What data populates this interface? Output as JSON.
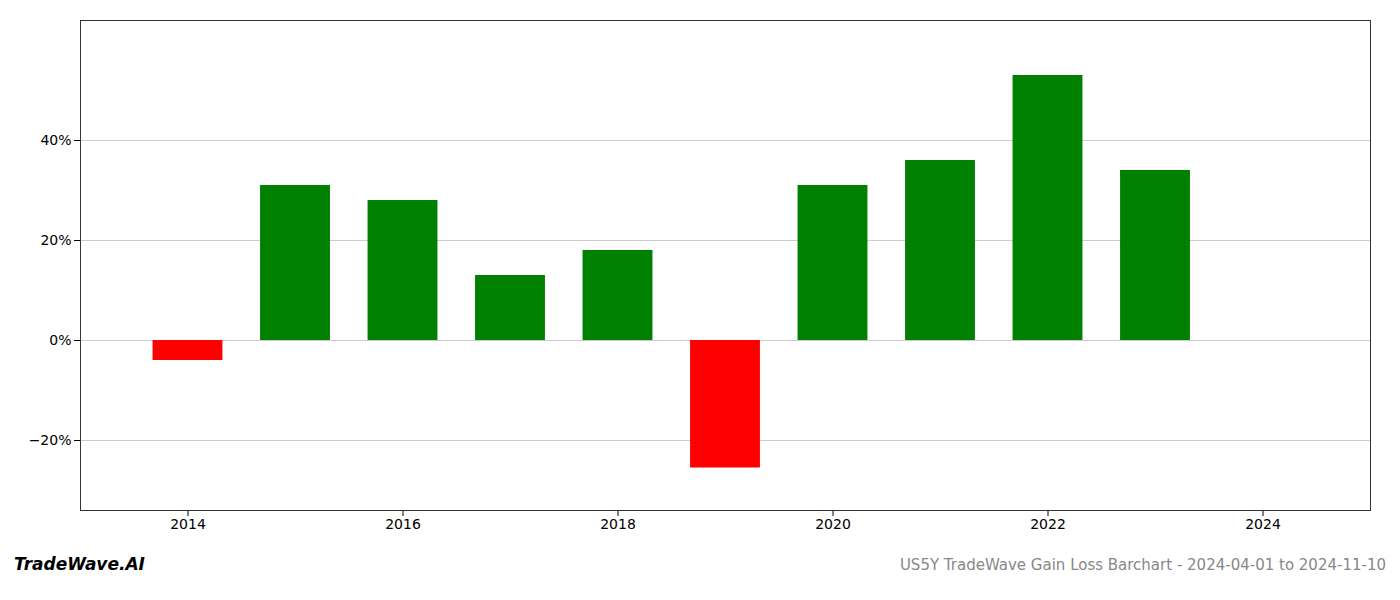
{
  "chart_data": {
    "type": "bar",
    "title": "US5Y TradeWave Gain Loss Barchart - 2024-04-01 to 2024-11-10",
    "annotations": [
      "TradeWave.AI"
    ],
    "x": [
      2014,
      2015,
      2016,
      2017,
      2018,
      2019,
      2020,
      2021,
      2022,
      2023
    ],
    "values": [
      -4.0,
      31.0,
      28.0,
      13.0,
      18.0,
      -25.5,
      31.0,
      36.0,
      53.0,
      34.0
    ],
    "colors": [
      "#ff0000",
      "#008000",
      "#008000",
      "#008000",
      "#008000",
      "#ff0000",
      "#008000",
      "#008000",
      "#008000",
      "#008000"
    ],
    "xlim": [
      2013.0,
      2025.0
    ],
    "xticks": [
      2014,
      2016,
      2018,
      2020,
      2022,
      2024
    ],
    "ylim": [
      -34,
      64
    ],
    "yticks": [
      {
        "value": -20,
        "label": "−20%"
      },
      {
        "value": 0,
        "label": "0%"
      },
      {
        "value": 20,
        "label": "20%"
      },
      {
        "value": 40,
        "label": "40%"
      }
    ],
    "grid": true
  }
}
